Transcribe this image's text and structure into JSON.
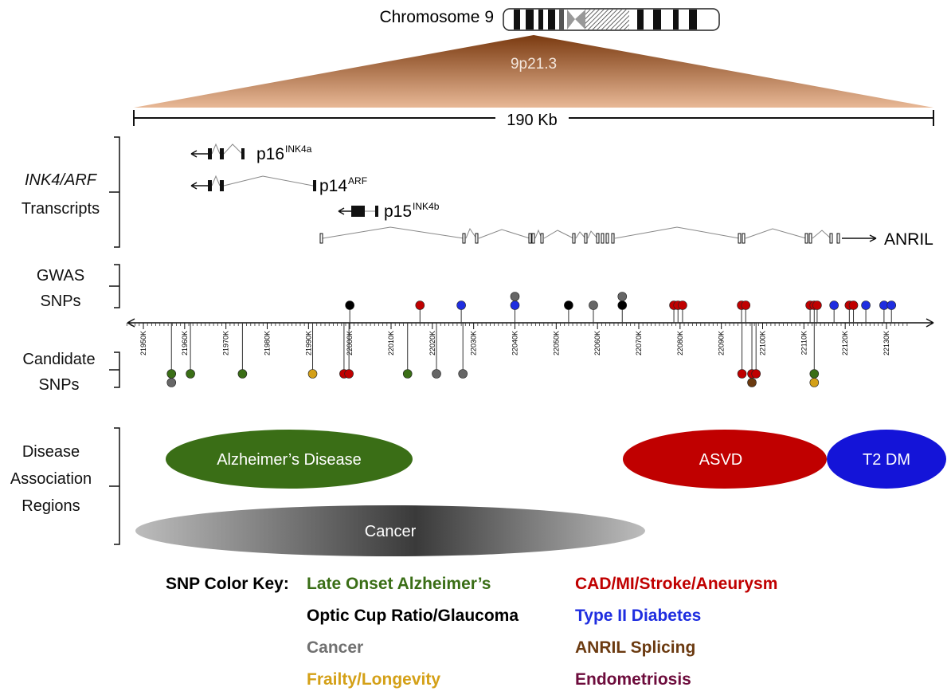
{
  "chromosome": {
    "label": "Chromosome 9",
    "band": "9p21.3"
  },
  "scale_bar": "190 Kb",
  "sections": {
    "transcripts": {
      "italic": "INK4/ARF",
      "label": "Transcripts"
    },
    "gwas": [
      "GWAS",
      "SNPs"
    ],
    "candidate": [
      "Candidate",
      "SNPs"
    ],
    "regions": [
      "Disease",
      "Association",
      "Regions"
    ]
  },
  "transcripts": [
    {
      "name": "p16",
      "superscript": "INK4a"
    },
    {
      "name": "p14",
      "superscript": "ARF"
    },
    {
      "name": "p15",
      "superscript": "INK4b"
    },
    {
      "name": "ANRIL"
    }
  ],
  "axis": {
    "ticks": [
      {
        "value": 21950,
        "label": "21950K"
      },
      {
        "value": 21960,
        "label": "21960K"
      },
      {
        "value": 21970,
        "label": "21970K"
      },
      {
        "value": 21980,
        "label": "21980K"
      },
      {
        "value": 21990,
        "label": "21990K"
      },
      {
        "value": 22000,
        "label": "22000K"
      },
      {
        "value": 22010,
        "label": "22010K"
      },
      {
        "value": 22020,
        "label": "22020K"
      },
      {
        "value": 22030,
        "label": "22030K"
      },
      {
        "value": 22040,
        "label": "22040K"
      },
      {
        "value": 22050,
        "label": "22050K"
      },
      {
        "value": 22060,
        "label": "22060K"
      },
      {
        "value": 22070,
        "label": "22070K"
      },
      {
        "value": 22080,
        "label": "22080K"
      },
      {
        "value": 22090,
        "label": "22090K"
      },
      {
        "value": 22100,
        "label": "22100K"
      },
      {
        "value": 22110,
        "label": "22110K"
      },
      {
        "value": 22120,
        "label": "22120K"
      },
      {
        "value": 22130,
        "label": "22130K"
      }
    ]
  },
  "gwas_snps": [
    {
      "position": 22000,
      "color": "#000000"
    },
    {
      "position": 22017,
      "color": "#c00000"
    },
    {
      "position": 22027,
      "color": "#1f2ee0"
    },
    {
      "position": 22040,
      "color": "#1f2ee0"
    },
    {
      "position": 22040,
      "color": "#666666"
    },
    {
      "position": 22053,
      "color": "#000000"
    },
    {
      "position": 22059,
      "color": "#666666"
    },
    {
      "position": 22066,
      "color": "#000000"
    },
    {
      "position": 22066,
      "color": "#666666"
    },
    {
      "position": 22078.5,
      "color": "#c00000"
    },
    {
      "position": 22079.5,
      "color": "#c00000"
    },
    {
      "position": 22080.6,
      "color": "#c00000"
    },
    {
      "position": 22094.9,
      "color": "#c00000"
    },
    {
      "position": 22095.9,
      "color": "#c00000"
    },
    {
      "position": 22111.5,
      "color": "#c00000"
    },
    {
      "position": 22112.5,
      "color": "#c00000"
    },
    {
      "position": 22113.2,
      "color": "#c00000"
    },
    {
      "position": 22117.3,
      "color": "#1f2ee0"
    },
    {
      "position": 22121,
      "color": "#c00000"
    },
    {
      "position": 22122,
      "color": "#c00000"
    },
    {
      "position": 22125,
      "color": "#1f2ee0"
    },
    {
      "position": 22129.4,
      "color": "#1f2ee0"
    },
    {
      "position": 22131.2,
      "color": "#1f2ee0"
    }
  ],
  "candidate_snps": [
    {
      "position": 21956.8,
      "color": "#3a6e16"
    },
    {
      "position": 21956.8,
      "color": "#666666"
    },
    {
      "position": 21961.4,
      "color": "#3a6e16"
    },
    {
      "position": 21974,
      "color": "#3a6e16"
    },
    {
      "position": 21991,
      "color": "#d4a017"
    },
    {
      "position": 21998.6,
      "color": "#c00000"
    },
    {
      "position": 21999.8,
      "color": "#c00000"
    },
    {
      "position": 22014,
      "color": "#3a6e16"
    },
    {
      "position": 22021,
      "color": "#666666"
    },
    {
      "position": 22027.4,
      "color": "#666666"
    },
    {
      "position": 22095,
      "color": "#c00000"
    },
    {
      "position": 22097.4,
      "color": "#c00000"
    },
    {
      "position": 22097.4,
      "color": "#6b3a10"
    },
    {
      "position": 22098.4,
      "color": "#c00000"
    },
    {
      "position": 22112.5,
      "color": "#3a6e16"
    },
    {
      "position": 22112.5,
      "color": "#d4a017"
    }
  ],
  "regions": [
    {
      "label": "Alzheimer’s Disease",
      "color": "#3a6e16"
    },
    {
      "label": "ASVD",
      "color": "#c00000"
    },
    {
      "label": "T2 DM",
      "color": "#1414d8"
    },
    {
      "label": "Cancer",
      "color": "#555555"
    }
  ],
  "color_key": {
    "title": "SNP Color Key:",
    "items": [
      {
        "label": "Late Onset Alzheimer’s",
        "color": "#3a6e16"
      },
      {
        "label": "Optic Cup Ratio/Glaucoma",
        "color": "#000000"
      },
      {
        "label": "Cancer",
        "color": "#707070"
      },
      {
        "label": "Frailty/Longevity",
        "color": "#d4a017"
      },
      {
        "label": "CAD/MI/Stroke/Aneurysm",
        "color": "#c00000"
      },
      {
        "label": "Type II Diabetes",
        "color": "#1f2ee0"
      },
      {
        "label": "ANRIL Splicing",
        "color": "#6b3a10"
      },
      {
        "label": "Endometriosis",
        "color": "#6d0c3c"
      }
    ]
  }
}
